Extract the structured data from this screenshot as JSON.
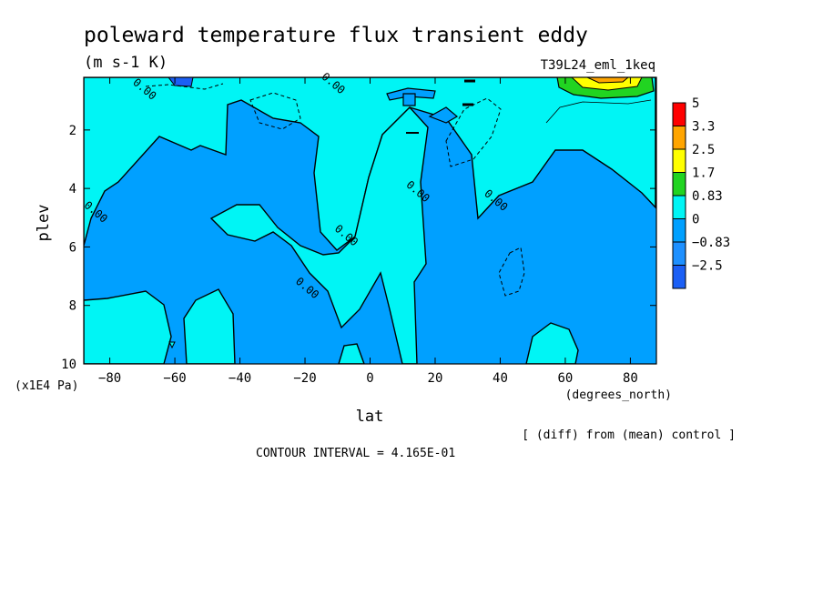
{
  "header": {
    "title": "poleward temperature flux transient eddy",
    "units": "(m s-1 K)",
    "run_label": "T39L24_eml_1keq"
  },
  "footer": {
    "comparison_note": "[ (diff) from (mean) control ]",
    "contour_interval": "CONTOUR INTERVAL = 4.165E-01"
  },
  "colors": {
    "below_neg2_5": "#1b5ff5",
    "neg2_5_to_neg0_83": "#1e90ff",
    "neg0_83_to_0": "#00a0ff",
    "zero_to_0_83": "#00f5f5",
    "band_0_83_to_1_7": "#21d421",
    "band_1_7_to_2_5": "#ffff00",
    "band_2_5_to_3_3": "#ffa500",
    "band_3_3_to_5": "#ff0000"
  },
  "chart_data": {
    "type": "contour",
    "xlabel": "lat",
    "x_unit": "(degrees_north)",
    "ylabel": "plev",
    "y_unit": "(x1E4 Pa)",
    "xlim": [
      -88,
      88
    ],
    "ylim": [
      10,
      0.2
    ],
    "x_ticks": [
      -80,
      -60,
      -40,
      -20,
      0,
      20,
      40,
      60,
      80
    ],
    "x_tick_labels": [
      "-80",
      "-60",
      "-40",
      "-20",
      "0",
      "20",
      "40",
      "60",
      "80"
    ],
    "y_ticks": [
      2,
      4,
      6,
      8,
      10
    ],
    "y_tick_labels": [
      "2",
      "4",
      "6",
      "8",
      "10"
    ],
    "contour_labels": [
      {
        "text": "0.00",
        "lat": -70,
        "plev": 0.7
      },
      {
        "text": "0.00",
        "lat": -85,
        "plev": 4.9
      },
      {
        "text": "0.00",
        "lat": -12,
        "plev": 0.5
      },
      {
        "text": "0.00",
        "lat": -8,
        "plev": 5.7
      },
      {
        "text": "0.00",
        "lat": -20,
        "plev": 7.5
      },
      {
        "text": "0.00",
        "lat": 14,
        "plev": 4.2
      },
      {
        "text": "0.00",
        "lat": 38,
        "plev": 4.5
      }
    ],
    "legend": {
      "placement": "right",
      "levels": [
        "5",
        "3.3",
        "2.5",
        "1.7",
        "0.83",
        "0",
        "-0.83",
        "-2.5"
      ],
      "level_values": [
        5,
        3.3,
        2.5,
        1.7,
        0.83,
        0,
        -0.83,
        -2.5
      ],
      "bands": [
        {
          "from": 3.3,
          "to": 5,
          "color": "#ff0000"
        },
        {
          "from": 2.5,
          "to": 3.3,
          "color": "#ffa500"
        },
        {
          "from": 1.7,
          "to": 2.5,
          "color": "#ffff00"
        },
        {
          "from": 0.83,
          "to": 1.7,
          "color": "#21d421"
        },
        {
          "from": 0,
          "to": 0.83,
          "color": "#00f5f5"
        },
        {
          "from": -0.83,
          "to": 0,
          "color": "#00a0ff"
        },
        {
          "from": -2.5,
          "to": -0.83,
          "color": "#1e90ff"
        },
        {
          "from": -5,
          "to": -2.5,
          "color": "#1b5ff5"
        }
      ]
    }
  }
}
